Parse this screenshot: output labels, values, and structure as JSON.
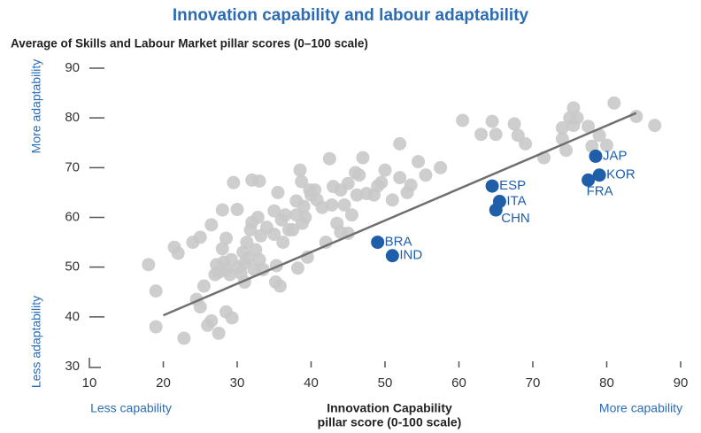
{
  "chart_data": {
    "type": "scatter",
    "title": "Innovation capability and labour adaptability",
    "subtitle": "Average of Skills and Labour Market pillar scores (0–100 scale)",
    "xlabel": [
      "Innovation Capability",
      "pillar score (0-100 scale)"
    ],
    "annotations": {
      "y_top": "More adaptability",
      "y_bottom": "Less adaptability",
      "x_left": "Less capability",
      "x_right": "More capability"
    },
    "xlim": [
      10,
      90
    ],
    "ylim": [
      30,
      90
    ],
    "xticks": [
      10,
      20,
      30,
      40,
      50,
      60,
      70,
      80,
      90
    ],
    "yticks": [
      30,
      40,
      50,
      60,
      70,
      80,
      90
    ],
    "trend": {
      "color": "#707070",
      "x": [
        20,
        84
      ],
      "y": [
        40.3,
        81
      ]
    },
    "series": [
      {
        "color": "#c9c9c9",
        "x": [
          18,
          19,
          19,
          21.5,
          22,
          22.8,
          24,
          24.5,
          25,
          25,
          25.5,
          26,
          26.5,
          26.5,
          27,
          27.2,
          27.5,
          27.5,
          28,
          28,
          28.2,
          28.5,
          28.5,
          28.5,
          29,
          29.2,
          29.3,
          29.5,
          30,
          30.2,
          30.5,
          30.8,
          31,
          31,
          31.3,
          31.5,
          31.8,
          32,
          32,
          32.3,
          32.5,
          32.8,
          33,
          33,
          33.2,
          33.5,
          34,
          35,
          35,
          35.2,
          35.3,
          35.5,
          35.8,
          36,
          36.2,
          36.5,
          37,
          37.5,
          38,
          38,
          38.2,
          38.5,
          38.7,
          38.8,
          39,
          39.2,
          39.5,
          39.8,
          40,
          40.5,
          40.8,
          41.5,
          42,
          42.5,
          42.8,
          43,
          43.5,
          44,
          44,
          44.5,
          45,
          45,
          45.5,
          46,
          46.2,
          46.5,
          47,
          47.5,
          48.5,
          49,
          49.5,
          50,
          51,
          52,
          52,
          53,
          53.5,
          54.5,
          55.5,
          57.5,
          60.5,
          63,
          64.5,
          65,
          67.5,
          68,
          69,
          71.5,
          74,
          74,
          74.5,
          75,
          75.5,
          75.5,
          76,
          77.5,
          78,
          79,
          80,
          81,
          84,
          86.5
        ],
        "y": [
          50.5,
          45.2,
          38,
          54,
          52.8,
          35.7,
          55,
          43.5,
          56,
          42,
          46.2,
          38.3,
          58.5,
          39.2,
          48.5,
          50.5,
          49,
          36.7,
          61.5,
          53.7,
          51,
          55.8,
          49.5,
          41,
          48.5,
          51.5,
          39.8,
          67,
          61.6,
          50,
          48.8,
          53,
          47,
          50.8,
          55,
          51.8,
          57.5,
          59,
          67.5,
          49.5,
          53.5,
          60,
          67.3,
          51.5,
          56.3,
          49.5,
          58,
          61.3,
          56.6,
          47,
          50.3,
          65,
          46.2,
          59.5,
          55,
          60.5,
          57.5,
          57.5,
          60.5,
          63.3,
          49.8,
          69.5,
          67.2,
          58.8,
          62.2,
          60,
          52,
          65.5,
          64.5,
          65.5,
          63.5,
          62,
          55,
          71.8,
          62.5,
          66.2,
          58.8,
          65.5,
          57,
          62.5,
          56.8,
          66.8,
          60.5,
          69,
          64.5,
          68.5,
          72,
          64.8,
          64.5,
          66.3,
          67,
          69.5,
          63.5,
          74.8,
          68,
          65,
          66.5,
          71.2,
          68.5,
          70,
          79.5,
          76.7,
          79.3,
          76.7,
          78.8,
          76.5,
          74.8,
          72,
          78,
          75.8,
          73.5,
          80,
          82,
          78.5,
          80,
          78.3,
          74.3,
          76.5,
          74.5,
          83,
          80.3,
          78.5
        ]
      },
      {
        "color": "#1f5ea8",
        "labels": [
          "ESP",
          "ITA",
          "CHN",
          "BRA",
          "IND",
          "JAP",
          "KOR",
          "FRA"
        ],
        "x": [
          64.5,
          65.5,
          65,
          49,
          51,
          78.5,
          79,
          77.5
        ],
        "y": [
          66.3,
          63.2,
          61.5,
          55,
          52.3,
          72.3,
          68.5,
          67.5
        ]
      }
    ]
  }
}
